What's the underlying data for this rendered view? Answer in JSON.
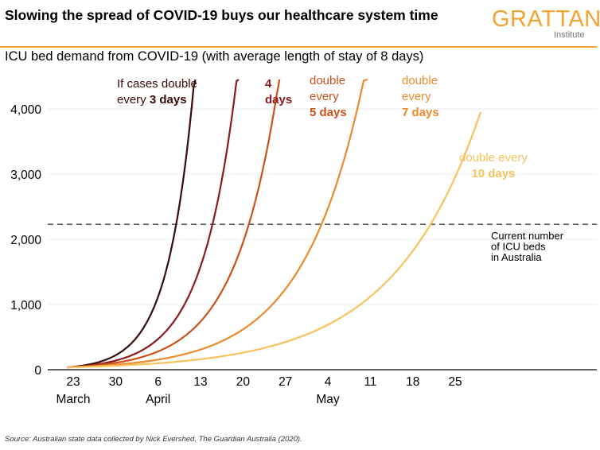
{
  "header": {
    "title": "Slowing the spread of COVID-19 buys our healthcare system time",
    "logo_main": "GRATTAN",
    "logo_sub": "Institute",
    "subtitle": "ICU bed demand from COVID-19 (with average length of stay of 8 days)"
  },
  "source": "Source: Australian state data collected by Nick Evershed, The Guardian Australia (2020).",
  "colors": {
    "accent": "#f3a233",
    "three_days": "#3b0a0a",
    "four_days": "#8e1a1e",
    "five_days": "#cc5119",
    "seven_days": "#ea8a2c",
    "ten_days": "#f8c25c"
  },
  "chart_data": {
    "type": "line",
    "title": "ICU bed demand from COVID-19 (with average length of stay of 8 days)",
    "x_ticks": [
      {
        "label": "23",
        "sub": "March",
        "day": 0
      },
      {
        "label": "30",
        "sub": "",
        "day": 7
      },
      {
        "label": "6",
        "sub": "April",
        "day": 14
      },
      {
        "label": "13",
        "sub": "",
        "day": 21
      },
      {
        "label": "20",
        "sub": "",
        "day": 28
      },
      {
        "label": "27",
        "sub": "",
        "day": 35
      },
      {
        "label": "4",
        "sub": "May",
        "day": 42
      },
      {
        "label": "11",
        "sub": "",
        "day": 49
      },
      {
        "label": "18",
        "sub": "",
        "day": 56
      },
      {
        "label": "25",
        "sub": "",
        "day": 63
      }
    ],
    "y_ticks": [
      {
        "value": 0,
        "label": "0"
      },
      {
        "value": 1000,
        "label": "1,000"
      },
      {
        "value": 2000,
        "label": "2,000"
      },
      {
        "value": 3000,
        "label": "3,000"
      },
      {
        "value": 4000,
        "label": "4,000"
      }
    ],
    "ylim": [
      0,
      4500
    ],
    "x_start": "2020-03-22",
    "reference_line": {
      "value": 2230,
      "label_lines": [
        "Current number",
        "of ICU beds",
        "in Australia"
      ]
    },
    "start_value": 35,
    "start_day": -1,
    "series": [
      {
        "key": "three_days",
        "name": "If cases double every 3 days",
        "doubling_days": 3,
        "end_day": 22.5,
        "label_lines": [
          {
            "pre": "If cases double",
            "bold": ""
          },
          {
            "pre": "every ",
            "bold": "3 days"
          }
        ]
      },
      {
        "key": "four_days",
        "name": "4 days",
        "doubling_days": 4,
        "end_day": 28.8,
        "label_lines": [
          {
            "pre": "",
            "bold": "4"
          },
          {
            "pre": "",
            "bold": "days"
          }
        ]
      },
      {
        "key": "five_days",
        "name": "double every 5 days",
        "doubling_days": 5,
        "end_day": 35.4,
        "label_lines": [
          {
            "pre": "double",
            "bold": ""
          },
          {
            "pre": "every",
            "bold": ""
          },
          {
            "pre": "",
            "bold": "5 days"
          }
        ]
      },
      {
        "key": "seven_days",
        "name": "double every 7 days",
        "doubling_days": 7,
        "end_day": 49.8,
        "label_lines": [
          {
            "pre": "double",
            "bold": ""
          },
          {
            "pre": "every",
            "bold": ""
          },
          {
            "pre": "",
            "bold": "7 days"
          }
        ]
      },
      {
        "key": "ten_days",
        "name": "double every 10 days",
        "doubling_days": 10,
        "end_day": 67.2,
        "label_lines": [
          {
            "pre": "double every",
            "bold": ""
          },
          {
            "pre": "",
            "bold": "10 days"
          }
        ]
      }
    ]
  }
}
